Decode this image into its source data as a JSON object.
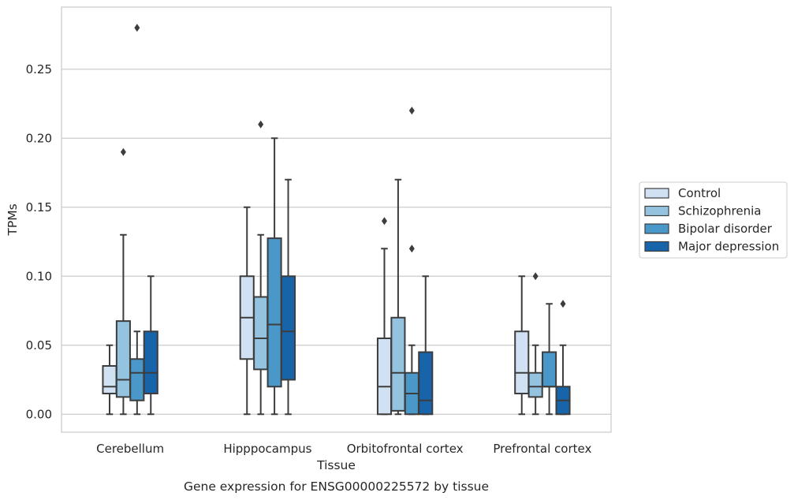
{
  "chart_data": {
    "type": "box",
    "title": "",
    "caption": "Gene expression for ENSG00000225572 by tissue",
    "xlabel": "Tissue",
    "ylabel": "TPMs",
    "ylim": [
      -0.013,
      0.295
    ],
    "yticks": [
      "0.00",
      "0.05",
      "0.10",
      "0.15",
      "0.20",
      "0.25"
    ],
    "grid": "horizontal",
    "legend_position": "right",
    "categories": [
      "Cerebellum",
      "Hipppocampus",
      "Orbitofrontal cortex",
      "Prefrontal cortex"
    ],
    "series": [
      {
        "name": "Control",
        "color": "#cfe1f2",
        "boxes": [
          {
            "whisker_low": 0.0,
            "q1": 0.015,
            "median": 0.02,
            "q3": 0.035,
            "whisker_high": 0.05,
            "outliers": []
          },
          {
            "whisker_low": 0.0,
            "q1": 0.04,
            "median": 0.07,
            "q3": 0.1,
            "whisker_high": 0.15,
            "outliers": []
          },
          {
            "whisker_low": 0.0,
            "q1": 0.0,
            "median": 0.02,
            "q3": 0.055,
            "whisker_high": 0.12,
            "outliers": [
              0.14
            ]
          },
          {
            "whisker_low": 0.0,
            "q1": 0.015,
            "median": 0.03,
            "q3": 0.06,
            "whisker_high": 0.1,
            "outliers": []
          }
        ]
      },
      {
        "name": "Schizophrenia",
        "color": "#93c3df",
        "boxes": [
          {
            "whisker_low": 0.0,
            "q1": 0.0125,
            "median": 0.025,
            "q3": 0.0675,
            "whisker_high": 0.13,
            "outliers": [
              0.19
            ]
          },
          {
            "whisker_low": 0.0,
            "q1": 0.0325,
            "median": 0.055,
            "q3": 0.085,
            "whisker_high": 0.13,
            "outliers": [
              0.21
            ]
          },
          {
            "whisker_low": 0.0,
            "q1": 0.0025,
            "median": 0.03,
            "q3": 0.07,
            "whisker_high": 0.17,
            "outliers": []
          },
          {
            "whisker_low": 0.0,
            "q1": 0.0125,
            "median": 0.02,
            "q3": 0.03,
            "whisker_high": 0.05,
            "outliers": [
              0.1
            ]
          }
        ]
      },
      {
        "name": "Bipolar disorder",
        "color": "#4a98c9",
        "boxes": [
          {
            "whisker_low": 0.0,
            "q1": 0.01,
            "median": 0.03,
            "q3": 0.04,
            "whisker_high": 0.06,
            "outliers": [
              0.28
            ]
          },
          {
            "whisker_low": 0.0,
            "q1": 0.02,
            "median": 0.065,
            "q3": 0.1275,
            "whisker_high": 0.2,
            "outliers": []
          },
          {
            "whisker_low": 0.0,
            "q1": 0.0,
            "median": 0.015,
            "q3": 0.03,
            "whisker_high": 0.05,
            "outliers": [
              0.12,
              0.22
            ]
          },
          {
            "whisker_low": 0.0,
            "q1": 0.02,
            "median": 0.02,
            "q3": 0.045,
            "whisker_high": 0.08,
            "outliers": []
          }
        ]
      },
      {
        "name": "Major depression",
        "color": "#1764ab",
        "boxes": [
          {
            "whisker_low": 0.0,
            "q1": 0.015,
            "median": 0.03,
            "q3": 0.06,
            "whisker_high": 0.1,
            "outliers": []
          },
          {
            "whisker_low": 0.0,
            "q1": 0.025,
            "median": 0.06,
            "q3": 0.1,
            "whisker_high": 0.17,
            "outliers": []
          },
          {
            "whisker_low": 0.0,
            "q1": 0.0,
            "median": 0.01,
            "q3": 0.045,
            "whisker_high": 0.1,
            "outliers": []
          },
          {
            "whisker_low": 0.0,
            "q1": 0.0,
            "median": 0.01,
            "q3": 0.02,
            "whisker_high": 0.05,
            "outliers": [
              0.08
            ]
          }
        ]
      }
    ]
  }
}
